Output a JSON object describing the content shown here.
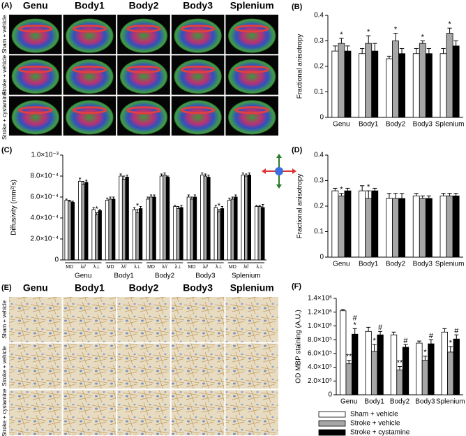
{
  "chart_data": [
    {
      "type": "bar",
      "panel": "(B)",
      "y_label": "Fractional anisotropy",
      "categories": [
        "Genu",
        "Body1",
        "Body2",
        "Body3",
        "Splenium"
      ],
      "series": [
        {
          "color": "#ffffff",
          "values": [
            0.26,
            0.25,
            0.23,
            0.25,
            0.25
          ],
          "errors": [
            0.02,
            0.02,
            0.01,
            0.02,
            0.02
          ]
        },
        {
          "color": "#a6a6a6",
          "values": [
            0.29,
            0.29,
            0.3,
            0.29,
            0.33
          ],
          "errors": [
            0.02,
            0.03,
            0.03,
            0.01,
            0.02
          ],
          "sig": [
            "*",
            "*",
            "*",
            "*",
            "*"
          ]
        },
        {
          "color": "#000000",
          "values": [
            0.26,
            0.26,
            0.25,
            0.25,
            0.28
          ],
          "errors": [
            0.02,
            0.03,
            0.02,
            0.02,
            0.02
          ]
        }
      ],
      "ylim": [
        0,
        0.4
      ],
      "yticks": [
        0,
        0.1,
        0.2,
        0.3,
        0.4
      ]
    },
    {
      "type": "bar",
      "panel": "(C)",
      "y_label": "Diffusivity (mm²/s)",
      "groups": [
        "Genu",
        "Body1",
        "Body2",
        "Body3",
        "Splenium"
      ],
      "categories": [
        "MD",
        "λ//",
        "λ⊥",
        "MD",
        "λ//",
        "λ⊥",
        "MD",
        "λ//",
        "λ⊥",
        "MD",
        "λ//",
        "λ⊥",
        "MD",
        "λ//",
        "λ⊥"
      ],
      "series": [
        {
          "color": "#ffffff",
          "values": [
            0.00057,
            0.00075,
            0.00048,
            0.00057,
            0.0008,
            0.00048,
            0.00058,
            0.0008,
            0.00051,
            0.0006,
            0.00081,
            0.0005,
            0.00057,
            0.00081,
            0.00051
          ],
          "errors": [
            1e-05,
            3e-05,
            2e-05,
            2e-05,
            2e-05,
            2e-05,
            2e-05,
            2e-05,
            1e-05,
            2e-05,
            2e-05,
            2e-05,
            2e-05,
            2e-05,
            1e-05
          ]
        },
        {
          "color": "#a6a6a6",
          "values": [
            0.00056,
            0.00072,
            0.00043,
            0.00058,
            0.00077,
            0.00045,
            0.0006,
            0.00081,
            0.00049,
            0.00058,
            0.0008,
            0.00046,
            0.00058,
            0.0008,
            0.00051
          ],
          "errors": [
            1e-05,
            3e-05,
            2e-05,
            2e-05,
            3e-05,
            3e-05,
            2e-05,
            2e-05,
            2e-05,
            2e-05,
            2e-05,
            2e-05,
            2e-05,
            2e-05,
            1e-05
          ],
          "sig": [
            null,
            null,
            "*",
            null,
            null,
            "*",
            null,
            null,
            null,
            null,
            null,
            "*",
            null,
            null,
            null
          ]
        },
        {
          "color": "#000000",
          "values": [
            0.00055,
            0.00074,
            0.00047,
            0.00058,
            0.00079,
            0.00049,
            0.0006,
            0.00079,
            0.0005,
            0.0006,
            0.00079,
            0.00049,
            0.0006,
            0.00081,
            0.0005
          ],
          "errors": [
            1e-05,
            2e-05,
            1e-05,
            2e-05,
            2e-05,
            2e-05,
            2e-05,
            1e-05,
            2e-05,
            2e-05,
            2e-05,
            2e-05,
            2e-05,
            2e-05,
            3e-05
          ]
        }
      ],
      "ylim": [
        0,
        0.001
      ],
      "yticks": [
        0,
        {
          "value": 0.0002,
          "label": "2.0×10⁻⁴"
        },
        {
          "value": 0.0004,
          "label": "4.0×10⁻⁴"
        },
        {
          "value": 0.0006,
          "label": "6.0×10⁻⁴"
        },
        {
          "value": 0.0008,
          "label": "8.0×10⁻⁴"
        },
        {
          "value": 0.001,
          "label": "1.0×10⁻³"
        }
      ]
    },
    {
      "type": "bar",
      "panel": "(D)",
      "y_label": "Fractional anisotropy",
      "categories": [
        "Genu",
        "Body1",
        "Body2",
        "Body3",
        "Splenium"
      ],
      "series": [
        {
          "color": "#ffffff",
          "values": [
            0.26,
            0.26,
            0.23,
            0.24,
            0.24
          ],
          "errors": [
            0.01,
            0.02,
            0.02,
            0.01,
            0.01
          ]
        },
        {
          "color": "#a6a6a6",
          "values": [
            0.24,
            0.23,
            0.23,
            0.23,
            0.24
          ],
          "errors": [
            0.01,
            0.03,
            0.02,
            0.01,
            0.01
          ],
          "sig": [
            "*",
            "*",
            null,
            null,
            null
          ]
        },
        {
          "color": "#000000",
          "values": [
            0.26,
            0.26,
            0.23,
            0.23,
            0.24
          ],
          "errors": [
            0.01,
            0.01,
            0.02,
            0.01,
            0.01
          ]
        }
      ],
      "ylim": [
        0,
        0.4
      ],
      "yticks": [
        0,
        0.1,
        0.2,
        0.3,
        0.4
      ]
    },
    {
      "type": "bar",
      "panel": "(F)",
      "y_label": "OD MBP staining (A.U.)",
      "categories": [
        "Genu",
        "Body1",
        "Body2",
        "Body3",
        "Splenium"
      ],
      "series": [
        {
          "name": "Sham + vehicle",
          "color": "#ffffff",
          "values": [
            1220000,
            920000,
            870000,
            750000,
            910000
          ],
          "errors": [
            20000,
            60000,
            40000,
            30000,
            50000
          ]
        },
        {
          "name": "Stroke + vehicle",
          "color": "#a6a6a6",
          "values": [
            450000,
            630000,
            360000,
            500000,
            620000
          ],
          "errors": [
            50000,
            100000,
            50000,
            60000,
            80000
          ],
          "sig": [
            [
              "**"
            ],
            [
              "*"
            ],
            [
              "**"
            ],
            [
              "*"
            ],
            [
              "*"
            ]
          ]
        },
        {
          "name": "Stroke + cystamine",
          "color": "#000000",
          "values": [
            880000,
            870000,
            690000,
            740000,
            810000
          ],
          "errors": [
            80000,
            50000,
            40000,
            60000,
            60000
          ],
          "sig": [
            [
              "#",
              "*"
            ],
            [
              "#"
            ],
            [
              "#"
            ],
            [
              "#"
            ],
            [
              "#"
            ]
          ]
        }
      ],
      "ylim": [
        0,
        1400000
      ],
      "yticks": [
        0,
        {
          "value": 200000,
          "label": "2.0×10⁵"
        },
        {
          "value": 400000,
          "label": "4.0×10⁵"
        },
        {
          "value": 600000,
          "label": "6.0×10⁵"
        },
        {
          "value": 800000,
          "label": "8.0×10⁵"
        },
        {
          "value": 1000000,
          "label": "1.0×10⁶"
        },
        {
          "value": 1200000,
          "label": "1.2×10⁶"
        },
        {
          "value": 1400000,
          "label": "1.4×10⁶"
        }
      ]
    }
  ],
  "image_panels": [
    {
      "panel": "(A)",
      "style": "dti",
      "columns": [
        "Genu",
        "Body1",
        "Body2",
        "Body3",
        "Splenium"
      ],
      "rows": [
        "Sham + vehicle",
        "Stroke + vehicle",
        "Stroke + cystamine"
      ]
    },
    {
      "panel": "(E)",
      "style": "stain",
      "columns": [
        "Genu",
        "Body1",
        "Body2",
        "Body3",
        "Splenium"
      ],
      "rows": [
        "Sham + vehicle",
        "Stroke + vehicle",
        "Stroke + cystamine"
      ]
    }
  ]
}
